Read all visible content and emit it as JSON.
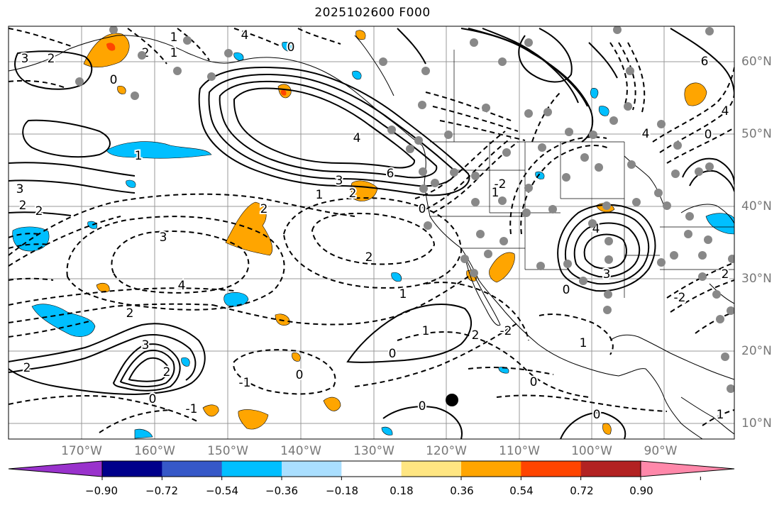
{
  "title": "2025102600 F000",
  "lon_labels": [
    "170°W",
    "160°W",
    "150°W",
    "140°W",
    "130°W",
    "120°W",
    "110°W",
    "100°W",
    "90°W"
  ],
  "lat_labels": [
    "60°N",
    "50°N",
    "40°N",
    "30°N",
    "20°N",
    "10°N"
  ],
  "colorbar": {
    "ticks": [
      "−0.90",
      "−0.72",
      "−0.54",
      "−0.36",
      "−0.18",
      "0.18",
      "0.36",
      "0.54",
      "0.72",
      "0.90"
    ],
    "colors": [
      "#9932cc",
      "#00008b",
      "#3658c8",
      "#00bfff",
      "#aadfff",
      "#ffffff",
      "#ffe682",
      "#ffa500",
      "#ff4500",
      "#b22222",
      "#ff88aa"
    ]
  },
  "contour_labels": [
    "3",
    "2",
    "2",
    "1",
    "1",
    "0",
    "0",
    "4",
    "2",
    "3",
    "2",
    "1",
    "3",
    "2",
    "4",
    "1",
    "3",
    "6",
    "0",
    "2",
    "2",
    "1",
    "-2",
    "3",
    "4",
    "2",
    "4",
    "6",
    "2",
    "-2",
    "4",
    "0",
    "3",
    "0",
    "-1",
    "2",
    "-2",
    "0",
    "1",
    "0",
    "-1",
    "0",
    "0",
    "2",
    "1",
    "2",
    "0",
    "1",
    "4",
    "1",
    "0"
  ],
  "colors": {
    "shade_blue": "#00bfff",
    "shade_orange": "#ffa500",
    "shade_red": "#ff4500",
    "grid": "#999999",
    "station": "#888888"
  }
}
